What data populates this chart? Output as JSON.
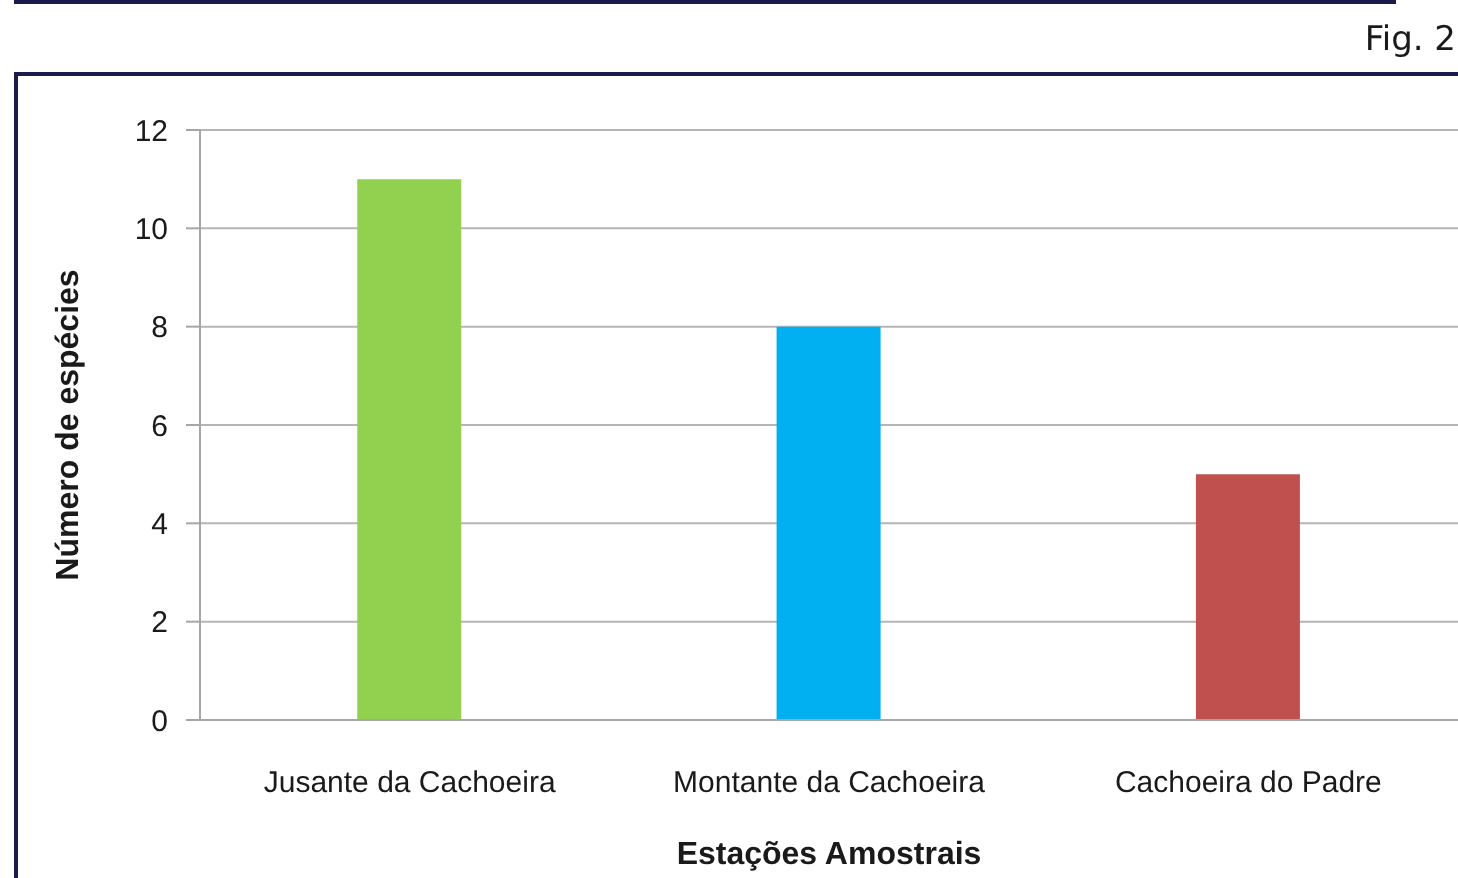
{
  "chart_data": {
    "type": "bar",
    "categories": [
      "Jusante da Cachoeira",
      "Montante da Cachoeira",
      "Cachoeira do Padre"
    ],
    "values": [
      11,
      8,
      5
    ],
    "colors": [
      "#92d050",
      "#00b0f0",
      "#c0504d"
    ],
    "xlabel": "Estações Amostrais",
    "ylabel": "Número de espécies",
    "ylim": [
      0,
      12
    ],
    "yticks": [
      0,
      2,
      4,
      6,
      8,
      10,
      12
    ],
    "grid": "y",
    "annotations": [
      "Fig. 2"
    ]
  }
}
